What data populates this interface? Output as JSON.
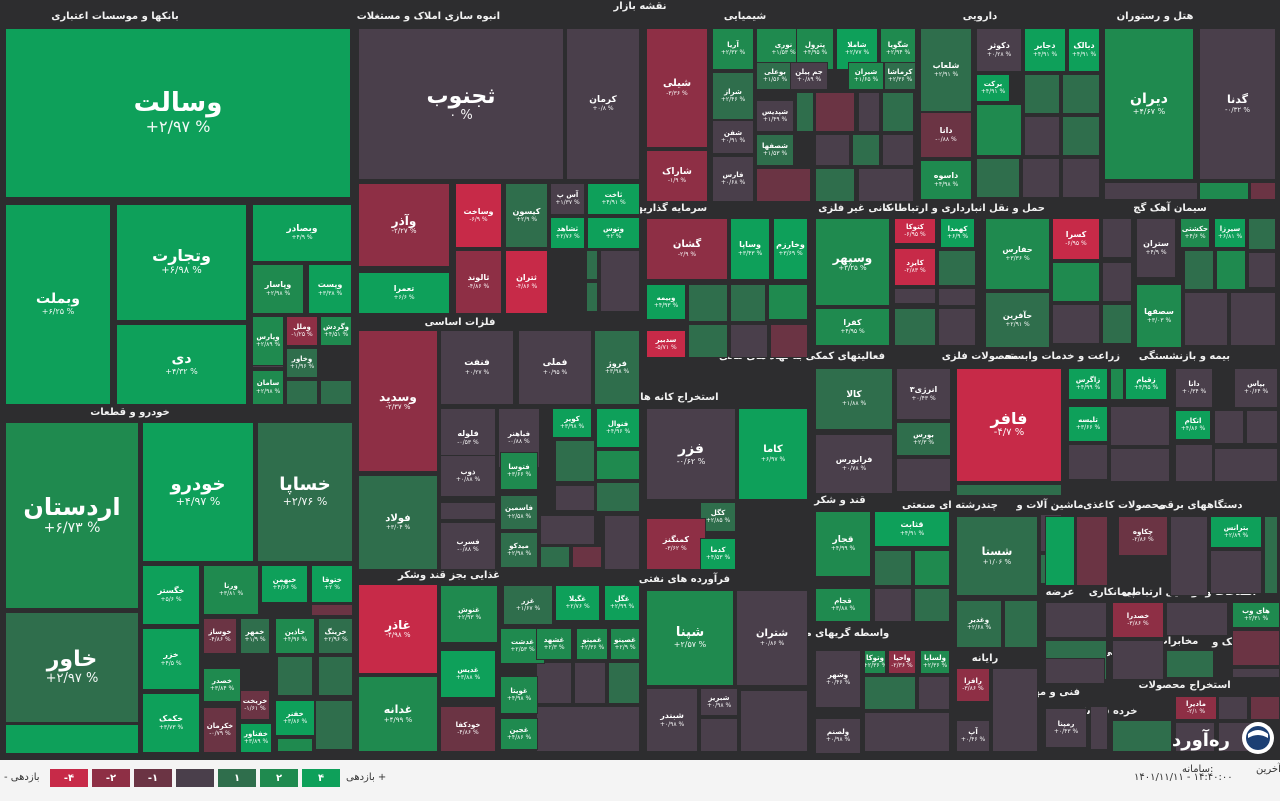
{
  "colors": {
    "g3": "#0ea05a",
    "g2": "#1f8a4f",
    "g1": "#2f6e4c",
    "n": "#4a3f4b",
    "r1": "#6b3444",
    "r2": "#8e2f45",
    "r3": "#c72a48"
  },
  "header": {
    "title": "نقشه بازار"
  },
  "sections": [
    {
      "id": "banks",
      "title": "بانکها و موسسات اعتباری"
    },
    {
      "id": "realestate",
      "title": "انبوه سازی املاک و مستغلات"
    },
    {
      "id": "chemical",
      "title": "شیمیایی"
    },
    {
      "id": "pharma",
      "title": "دارویی"
    },
    {
      "id": "hotel",
      "title": "هتل و رستوران"
    },
    {
      "id": "investment",
      "title": "سرمایه گذاریها"
    },
    {
      "id": "nonmetal",
      "title": "کانی غیر فلزی"
    },
    {
      "id": "telecom",
      "title": "حمل و نقل انبارداری و ارتباطات"
    },
    {
      "id": "cement",
      "title": "سیمان آهک گچ"
    },
    {
      "id": "auto",
      "title": "خودرو و قطعات"
    },
    {
      "id": "metals",
      "title": "فلزات اساسی"
    },
    {
      "id": "mining",
      "title": "استخراج کانه های فلزی"
    },
    {
      "id": "financial",
      "title": "فعالیتهای کمکی به نهاد های مالی"
    },
    {
      "id": "metalproducts",
      "title": "محصولات فلزی"
    },
    {
      "id": "agri",
      "title": "زراعت و خدمات وابسته"
    },
    {
      "id": "insurance",
      "title": "بیمه و بازنشستگی"
    },
    {
      "id": "sugar",
      "title": "قند و شکر"
    },
    {
      "id": "multi",
      "title": "چندرشته ای صنعتی"
    },
    {
      "id": "machinery",
      "title": "ماشین آلات و"
    },
    {
      "id": "paper",
      "title": "محصولات کاغذی"
    },
    {
      "id": "electrical",
      "title": "دستگاههای برقی"
    },
    {
      "id": "food",
      "title": "غذایی بجز قند وشکر"
    },
    {
      "id": "oil",
      "title": "فرآورده های نفتی"
    },
    {
      "id": "broker",
      "title": "واسطه گریهای مالی و پولی"
    },
    {
      "id": "computer",
      "title": "رایانه"
    },
    {
      "id": "offer",
      "title": "عرضه"
    },
    {
      "id": "contract",
      "title": "پیمانکاری"
    },
    {
      "id": "radio",
      "title": "وسایل ارتباطی"
    },
    {
      "id": "info",
      "title": "اطلاعات و"
    },
    {
      "id": "tiles",
      "title": "کاشی و"
    },
    {
      "id": "comm",
      "title": "مخابرات"
    },
    {
      "id": "logistics",
      "title": "لاستیک و"
    },
    {
      "id": "engineering",
      "title": "فنی و مهندسی"
    },
    {
      "id": "products",
      "title": "محصولات"
    },
    {
      "id": "extraction",
      "title": "استخراج"
    },
    {
      "id": "retail",
      "title": "خرده فروشی"
    }
  ],
  "tiles": [
    {
      "name": "وسالت",
      "change": "+۲/۹۷ %",
      "c": "g3"
    },
    {
      "name": "وبملت",
      "change": "+۶/۲۵ %",
      "c": "g3"
    },
    {
      "name": "وتجارت",
      "change": "+۶/۹۸ %",
      "c": "g3"
    },
    {
      "name": "دی",
      "change": "+۴/۳۲ %",
      "c": "g3"
    },
    {
      "name": "وبصادر",
      "change": "+۴/۹ %",
      "c": "g3"
    },
    {
      "name": "وپاسار",
      "change": "+۲/۹۸ %",
      "c": "g2"
    },
    {
      "name": "وپست",
      "change": "+۳/۳۸ %",
      "c": "g3"
    },
    {
      "name": "وپارس",
      "change": "+۲/۸۹ %",
      "c": "g2"
    },
    {
      "name": "وملل",
      "change": "-۱/۲۵ %",
      "c": "r2"
    },
    {
      "name": "وگردش",
      "change": "+۴/۵۱ %",
      "c": "g2"
    },
    {
      "name": "وخاور",
      "change": "+۱/۹۶ %",
      "c": "g1"
    },
    {
      "name": "سامان",
      "change": "+۲/۹۸ %",
      "c": "g2"
    },
    {
      "name": "ثجنوب",
      "change": "۰ %",
      "c": "n"
    },
    {
      "name": "کرمان",
      "change": "+۰/۸ %",
      "c": "n"
    },
    {
      "name": "وآذر",
      "change": "-۲/۲۷ %",
      "c": "r2"
    },
    {
      "name": "وساخت",
      "change": "-۶/۹ %",
      "c": "r3"
    },
    {
      "name": "کیسون",
      "change": "+۲/۹ %",
      "c": "g1"
    },
    {
      "name": "آس پ",
      "change": "+۱/۳۷ %",
      "c": "n"
    },
    {
      "name": "ثاخت",
      "change": "+۴/۹۱ %",
      "c": "g3"
    },
    {
      "name": "ثشاهد",
      "change": "+۲/۷۶ %",
      "c": "g3"
    },
    {
      "name": "وتوس",
      "change": "+۲ %",
      "c": "g3"
    },
    {
      "name": "تعمرا",
      "change": "+۶/۶ %",
      "c": "g3"
    },
    {
      "name": "ثالوند",
      "change": "-۴/۸۶ %",
      "c": "r2"
    },
    {
      "name": "ثتران",
      "change": "-۴/۸۶ %",
      "c": "r3"
    },
    {
      "name": "شیلی",
      "change": "-۳/۳۶ %",
      "c": "r2"
    },
    {
      "name": "آریا",
      "change": "+۲/۳۲ %",
      "c": "g2"
    },
    {
      "name": "نوری",
      "change": "+۱/۵۳ %",
      "c": "g2"
    },
    {
      "name": "پترول",
      "change": "+۴/۹۵ %",
      "c": "g2"
    },
    {
      "name": "شاملا",
      "change": "+۲/۷۷ %",
      "c": "g3"
    },
    {
      "name": "شگویا",
      "change": "+۲/۹۴ %",
      "c": "g2"
    },
    {
      "name": "بوعلی",
      "change": "+۱/۵۶ %",
      "c": "g1"
    },
    {
      "name": "جم پیلن",
      "change": "+۰/۸۹ %",
      "c": "n"
    },
    {
      "name": "شیران",
      "change": "+۱/۶۵ %",
      "c": "g2"
    },
    {
      "name": "کرماشا",
      "change": "+۲/۳۶ %",
      "c": "g1"
    },
    {
      "name": "شراز",
      "change": "+۲/۴۶ %",
      "c": "g1"
    },
    {
      "name": "شفن",
      "change": "+۰/۹۱ %",
      "c": "n"
    },
    {
      "name": "شصفها",
      "change": "+۱/۵۳ %",
      "c": "g1"
    },
    {
      "name": "شاراک",
      "change": "-۱/۹ %",
      "c": "r2"
    },
    {
      "name": "فارس",
      "change": "+۰/۶۸ %",
      "c": "n"
    },
    {
      "name": "شپدیس",
      "change": "+۱/۴۹ %",
      "c": "n"
    },
    {
      "name": "شلعاب",
      "change": "+۲/۹۱ %",
      "c": "g1"
    },
    {
      "name": "دکوثر",
      "change": "+۰/۲۸ %",
      "c": "n"
    },
    {
      "name": "دجابر",
      "change": "+۴/۹۱ %",
      "c": "g3"
    },
    {
      "name": "دبالک",
      "change": "+۴/۹۱ %",
      "c": "g3"
    },
    {
      "name": "برکت",
      "change": "+۴/۹۱ %",
      "c": "g3"
    },
    {
      "name": "دانا",
      "change": "-۰/۸۸ %",
      "c": "r1"
    },
    {
      "name": "داسوه",
      "change": "+۴/۹۸ %",
      "c": "g2"
    },
    {
      "name": "دیران",
      "change": "+۴/۶۷ %",
      "c": "g2"
    },
    {
      "name": "گدنا",
      "change": "-۰/۳۲ %",
      "c": "n"
    },
    {
      "name": "گشان",
      "change": "-۲/۹ %",
      "c": "r2"
    },
    {
      "name": "وساپا",
      "change": "+۳/۴۳ %",
      "c": "g3"
    },
    {
      "name": "وخارزم",
      "change": "+۳/۶۹ %",
      "c": "g3"
    },
    {
      "name": "وبیمه",
      "change": "+۴/۹۳ %",
      "c": "g3"
    },
    {
      "name": "سدبیر",
      "change": "-۵/۷۱ %",
      "c": "r3"
    },
    {
      "name": "وسپهر",
      "change": "+۳/۲۵ %",
      "c": "g2"
    },
    {
      "name": "کتوکا",
      "change": "-۶/۹۵ %",
      "c": "r3"
    },
    {
      "name": "کهمدا",
      "change": "+۶/۹ %",
      "c": "g3"
    },
    {
      "name": "کایزد",
      "change": "-۲/۸۳ %",
      "c": "r3"
    },
    {
      "name": "کفرا",
      "change": "+۴/۹۵ %",
      "c": "g2"
    },
    {
      "name": "کسرا",
      "change": "-۶/۹۵ %",
      "c": "r3"
    },
    {
      "name": "حفارس",
      "change": "+۳/۳۶ %",
      "c": "g2"
    },
    {
      "name": "حآفرین",
      "change": "+۲/۹۱ %",
      "c": "g1"
    },
    {
      "name": "حکشتی",
      "change": "+۴/۶ %",
      "c": "g2"
    },
    {
      "name": "سیرزا",
      "change": "+۶/۸۱ %",
      "c": "g3"
    },
    {
      "name": "ستران",
      "change": "+۴/۹ %",
      "c": "n"
    },
    {
      "name": "سصفها",
      "change": "+۳/۰۳ %",
      "c": "g2"
    },
    {
      "name": "اردستان",
      "change": "+۶/۷۳ %",
      "c": "g2"
    },
    {
      "name": "خودرو",
      "change": "+۴/۹۷ %",
      "c": "g3"
    },
    {
      "name": "خساپا",
      "change": "+۲/۷۶ %",
      "c": "g1"
    },
    {
      "name": "خاور",
      "change": "+۲/۹۷ %",
      "c": "g1"
    },
    {
      "name": "خگستر",
      "change": "+۵/۶ %",
      "c": "g3"
    },
    {
      "name": "ورنا",
      "change": "+۳/۸۱ %",
      "c": "g2"
    },
    {
      "name": "خبهمن",
      "change": "+۴/۶۶ %",
      "c": "g3"
    },
    {
      "name": "ختوقا",
      "change": "+۲ %",
      "c": "g3"
    },
    {
      "name": "خوساز",
      "change": "-۴/۸۶ %",
      "c": "r1"
    },
    {
      "name": "خمهر",
      "change": "+۱/۹ %",
      "c": "g1"
    },
    {
      "name": "خاذین",
      "change": "+۴/۹۶ %",
      "c": "g2"
    },
    {
      "name": "خرینگ",
      "change": "+۲/۹۶ %",
      "c": "g1"
    },
    {
      "name": "خزر",
      "change": "+۴/۵ %",
      "c": "g3"
    },
    {
      "name": "خصدر",
      "change": "+۳/۸۴ %",
      "c": "g2"
    },
    {
      "name": "خریخت",
      "change": "-۱/۶۱ %",
      "c": "r1"
    },
    {
      "name": "خکمک",
      "change": "+۳/۷۳ %",
      "c": "g3"
    },
    {
      "name": "خکرمان",
      "change": "-۰/۷۹ %",
      "c": "r1"
    },
    {
      "name": "خفناور",
      "change": "+۳/۸۹ %",
      "c": "g3"
    },
    {
      "name": "خفنر",
      "change": "+۳/۸۶ %",
      "c": "g3"
    },
    {
      "name": "وسدید",
      "change": "-۲/۳۷ %",
      "c": "r2"
    },
    {
      "name": "فنفت",
      "change": "+۰/۲۷ %",
      "c": "n"
    },
    {
      "name": "فملی",
      "change": "+۰/۹۵ %",
      "c": "n"
    },
    {
      "name": "فروژ",
      "change": "+۳/۹۸ %",
      "c": "g1"
    },
    {
      "name": "فلوله",
      "change": "-۰/۵۳ %",
      "c": "n"
    },
    {
      "name": "فباهنر",
      "change": "-۰/۸۸ %",
      "c": "n"
    },
    {
      "name": "کویر",
      "change": "+۳/۹۸ %",
      "c": "g3"
    },
    {
      "name": "فنوال",
      "change": "+۴/۹۶ %",
      "c": "g3"
    },
    {
      "name": "فولاد",
      "change": "+۳/۰۴ %",
      "c": "g1"
    },
    {
      "name": "ذوب",
      "change": "+۰/۸۸ %",
      "c": "n"
    },
    {
      "name": "فتوسا",
      "change": "+۳/۶۶ %",
      "c": "g2"
    },
    {
      "name": "فاسمین",
      "change": "+۲/۵۸ %",
      "c": "g1"
    },
    {
      "name": "فسرب",
      "change": "-۰/۸۸ %",
      "c": "n"
    },
    {
      "name": "میدکو",
      "change": "+۲/۹۸ %",
      "c": "g1"
    },
    {
      "name": "فزر",
      "change": "-۰/۶۲ %",
      "c": "n"
    },
    {
      "name": "کاما",
      "change": "+۶/۹۷ %",
      "c": "g3"
    },
    {
      "name": "کگل",
      "change": "+۲/۸۵ %",
      "c": "g1"
    },
    {
      "name": "کمنگنز",
      "change": "-۳/۶۲ %",
      "c": "r2"
    },
    {
      "name": "کدما",
      "change": "+۴/۵۳ %",
      "c": "g3"
    },
    {
      "name": "غاذر",
      "change": "-۴/۹۸ %",
      "c": "r3"
    },
    {
      "name": "غنوش",
      "change": "+۲/۹۳ %",
      "c": "g2"
    },
    {
      "name": "غزر",
      "change": "+۱/۶۷ %",
      "c": "g1"
    },
    {
      "name": "غگیلا",
      "change": "+۲/۷۶ %",
      "c": "g3"
    },
    {
      "name": "غگل",
      "change": "+۲/۹۹ %",
      "c": "g3"
    },
    {
      "name": "غدشت",
      "change": "+۲/۵۳ %",
      "c": "g2"
    },
    {
      "name": "غشهد",
      "change": "+۲/۳ %",
      "c": "g2"
    },
    {
      "name": "غمینو",
      "change": "+۲/۳۶ %",
      "c": "g2"
    },
    {
      "name": "غصینو",
      "change": "+۲/۹ %",
      "c": "g2"
    },
    {
      "name": "غدیس",
      "change": "+۳/۸۸ %",
      "c": "g3"
    },
    {
      "name": "غدانه",
      "change": "+۴/۹۹ %",
      "c": "g2"
    },
    {
      "name": "غویتا",
      "change": "+۴/۹۸ %",
      "c": "g2"
    },
    {
      "name": "خودکفا",
      "change": "-۴/۸۶ %",
      "c": "r1"
    },
    {
      "name": "غجین",
      "change": "+۴/۸۶ %",
      "c": "g2"
    },
    {
      "name": "شپنا",
      "change": "+۲/۵۷ %",
      "c": "g2"
    },
    {
      "name": "شتران",
      "change": "+۰/۸۶ %",
      "c": "n"
    },
    {
      "name": "شبریز",
      "change": "+۰/۹۸ %",
      "c": "n"
    },
    {
      "name": "شبندر",
      "change": "+۰/۹۸ %",
      "c": "n"
    },
    {
      "name": "کالا",
      "change": "+۱/۸۸ %",
      "c": "g1"
    },
    {
      "name": "انرژی۳",
      "change": "+۰/۴۳ %",
      "c": "n"
    },
    {
      "name": "بورس",
      "change": "+۲/۳ %",
      "c": "g1"
    },
    {
      "name": "فرابورس",
      "change": "+۰/۷۸ %",
      "c": "n"
    },
    {
      "name": "فافر",
      "change": "-۴/۷ %",
      "c": "r3"
    },
    {
      "name": "زاگرس",
      "change": "+۴/۹۹ %",
      "c": "g3"
    },
    {
      "name": "زقیام",
      "change": "+۴/۹۵ %",
      "c": "g3"
    },
    {
      "name": "تلیسه",
      "change": "+۳/۶۶ %",
      "c": "g3"
    },
    {
      "name": "اتکام",
      "change": "+۴/۸۶ %",
      "c": "g3"
    },
    {
      "name": "دانا",
      "change": "+۰/۳۴ %",
      "c": "n"
    },
    {
      "name": "بپاس",
      "change": "+۰/۶۴ %",
      "c": "n"
    },
    {
      "name": "قثابت",
      "change": "+۴/۹۱ %",
      "c": "g3"
    },
    {
      "name": "قجار",
      "change": "+۴/۹۹ %",
      "c": "g2"
    },
    {
      "name": "قجام",
      "change": "+۳/۸۸ %",
      "c": "g2"
    },
    {
      "name": "شستا",
      "change": "+۱/۰۶ %",
      "c": "g1"
    },
    {
      "name": "وغدیر",
      "change": "+۲/۶۸ %",
      "c": "g1"
    },
    {
      "name": "چکاوه",
      "change": "-۲/۸۶ %",
      "c": "r1"
    },
    {
      "name": "بترانس",
      "change": "+۲/۸۹ %",
      "c": "g3"
    },
    {
      "name": "خصدرا",
      "change": "-۳/۸۶ %",
      "c": "r2"
    },
    {
      "name": "های وب",
      "change": "+۲/۳۱ %",
      "c": "g2"
    },
    {
      "name": "وتوکا",
      "change": "+۲/۳۶ %",
      "c": "g2"
    },
    {
      "name": "واحیا",
      "change": "-۲/۳۶ %",
      "c": "r2"
    },
    {
      "name": "ولساپا",
      "change": "+۲/۳۶ %",
      "c": "g2"
    },
    {
      "name": "وشهر",
      "change": "+۰/۴۶ %",
      "c": "n"
    },
    {
      "name": "ولصنم",
      "change": "+۰/۹۸ %",
      "c": "n"
    },
    {
      "name": "رافزا",
      "change": "-۳/۸۶ %",
      "c": "r2"
    },
    {
      "name": "آپ",
      "change": "+۰/۴۶ %",
      "c": "n"
    },
    {
      "name": "رمپنا",
      "change": "+۰/۴۳ %",
      "c": "n"
    },
    {
      "name": "مادیرا",
      "change": "-۲/۱ %",
      "c": "r2"
    }
  ],
  "footer": {
    "legend_title": "بازدهی",
    "legend_plus": "بازدهی +",
    "legend_minus": "- بازدهی",
    "legend_labels": [
      "-۴",
      "-۲",
      "-۱",
      "",
      "۱",
      "۲",
      "۴"
    ],
    "last_update_label": "آخرین",
    "last_update_label2": "سامانه:",
    "last_update_value": "۱۴۰۱/۱۱/۱۱ - ۱۴:۴۰:۰۰",
    "logo_text": "ره‌آورد"
  }
}
